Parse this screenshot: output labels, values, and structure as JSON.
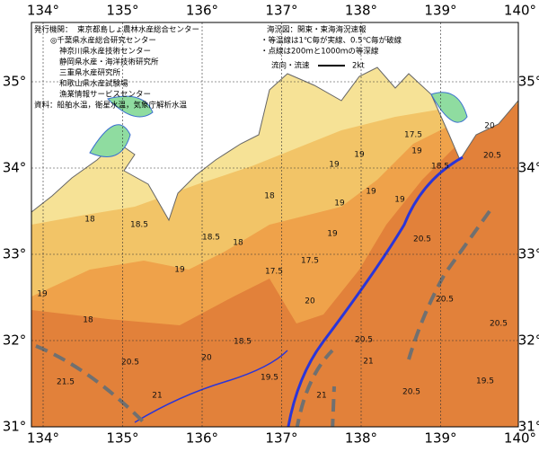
{
  "header": {
    "publisher_label": "発行機関：",
    "publishers": [
      "東京都島しょ農林水産総合センター",
      "◎千葉県水産総合研究センター",
      "神奈川県水産技術センター",
      "静岡県水産・海洋技術研究所",
      "三重県水産研究所",
      "和歌山県水産試験場",
      "漁業情報サービスセンター"
    ],
    "source": "資料：船舶水温，衛星水温，気象庁解析水温"
  },
  "notes": {
    "title": "海況図：関東・東海海況速報",
    "lines": [
      "・等温線は1℃毎が実線、0.5℃毎が破線",
      "・点線は200ｍと1000ｍの等深線"
    ],
    "legend": "流向・流速",
    "legend_scale": "2kt"
  },
  "map": {
    "lon_labels": [
      "134°",
      "135°",
      "136°",
      "137°",
      "138°",
      "139°",
      "140°"
    ],
    "lat_labels": [
      "35°",
      "34°",
      "33°",
      "32°",
      "31°"
    ],
    "contour_labels": [
      "19",
      "18",
      "18",
      "18.5",
      "19",
      "18.5",
      "18",
      "18.5",
      "17.5",
      "17.5",
      "18",
      "19",
      "19",
      "19",
      "19",
      "19.5",
      "20",
      "20",
      "20.5",
      "21",
      "21.5",
      "17.5",
      "19",
      "19",
      "20.5",
      "20",
      "20.5",
      "18.5",
      "20.5",
      "20.5",
      "20.5",
      "21",
      "21",
      "20.5",
      "19.5",
      "19"
    ]
  }
}
